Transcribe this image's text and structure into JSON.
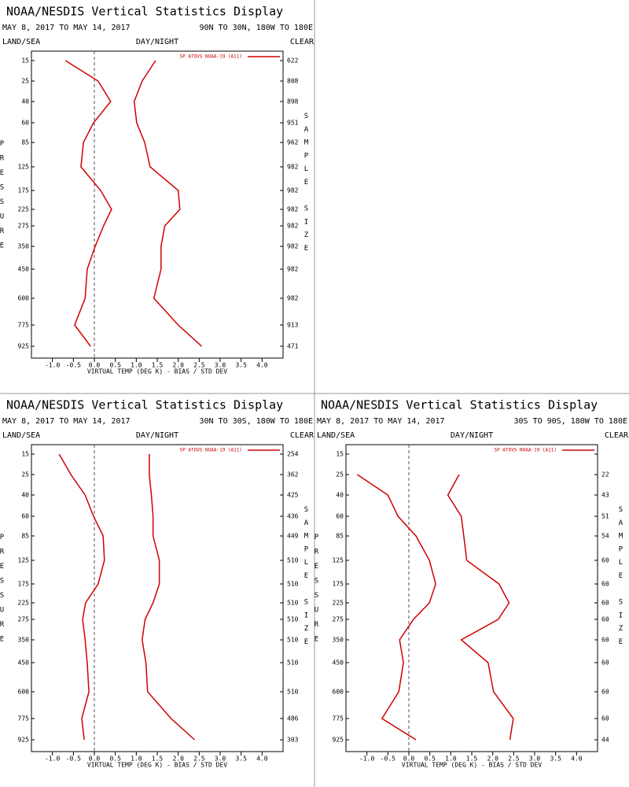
{
  "chart_data": [
    {
      "type": "line",
      "title": "NOAA/NESDIS Vertical Statistics Display",
      "date_range": "MAY 8, 2017 TO MAY 14, 2017",
      "region": "90N TO 30N, 180W TO 180E",
      "surface": "LAND/SEA",
      "time": "DAY/NIGHT",
      "sky": "CLEAR",
      "ylabel": "PRESSURE",
      "y2label": "SAMPLE SIZE",
      "xlabel": "VIRTUAL TEMP (DEG K) - BIAS / STD DEV",
      "categories": [
        15,
        25,
        40,
        60,
        85,
        125,
        175,
        225,
        275,
        350,
        450,
        600,
        775,
        925
      ],
      "sample_size": [
        622,
        808,
        898,
        951,
        962,
        982,
        982,
        982,
        982,
        982,
        982,
        982,
        913,
        471
      ],
      "series": [
        {
          "name": "SP ATOVS NOAA-19 (A11)",
          "color": "#d00000",
          "values": [
            -0.69,
            0.09,
            0.39,
            -0.02,
            -0.26,
            -0.32,
            0.15,
            0.41,
            0.22,
            0.02,
            -0.17,
            -0.22,
            -0.47,
            -0.09
          ],
          "std_dev": [
            1.46,
            1.14,
            0.95,
            1.01,
            1.2,
            1.33,
            2.0,
            2.04,
            1.68,
            1.59,
            1.59,
            1.42,
            2.0,
            2.56
          ]
        }
      ],
      "xlim": [
        -1.5,
        4.5
      ],
      "xticks": [
        {
          "value": -1,
          "label": "-1.0"
        },
        {
          "value": -0.5,
          "label": "-0.5"
        },
        {
          "value": 0,
          "label": "0.0"
        },
        {
          "value": 0.5,
          "label": "0.5"
        },
        {
          "value": 1,
          "label": "1.0"
        },
        {
          "value": 1.5,
          "label": "1.5"
        },
        {
          "value": 2,
          "label": "2.0"
        },
        {
          "value": 2.5,
          "label": "2.5"
        },
        {
          "value": 3,
          "label": "3.0"
        },
        {
          "value": 3.5,
          "label": "3.5"
        },
        {
          "value": 4,
          "label": "4.0"
        }
      ]
    },
    {
      "type": "line",
      "title": "NOAA/NESDIS Vertical Statistics Display",
      "date_range": "MAY 8, 2017 TO MAY 14, 2017",
      "region": "30N TO 30S, 180W TO 180E",
      "surface": "LAND/SEA",
      "time": "DAY/NIGHT",
      "sky": "CLEAR",
      "ylabel": "PRESSURE",
      "y2label": "SAMPLE SIZE",
      "xlabel": "VIRTUAL TEMP (DEG K) - BIAS / STD DEV",
      "categories": [
        15,
        25,
        40,
        60,
        85,
        125,
        175,
        225,
        275,
        350,
        450,
        600,
        775,
        925
      ],
      "sample_size": [
        254,
        362,
        425,
        436,
        449,
        510,
        510,
        510,
        510,
        510,
        510,
        510,
        486,
        303
      ],
      "series": [
        {
          "name": "SP ATOVS NOAA-19 (A11)",
          "color": "#d00000",
          "values": [
            -0.84,
            -0.56,
            -0.22,
            -0.02,
            0.21,
            0.24,
            0.09,
            -0.21,
            -0.28,
            -0.22,
            -0.17,
            -0.13,
            -0.3,
            -0.24
          ],
          "std_dev": [
            1.31,
            1.31,
            1.36,
            1.4,
            1.4,
            1.55,
            1.55,
            1.4,
            1.21,
            1.14,
            1.23,
            1.27,
            1.83,
            2.39
          ]
        }
      ],
      "xlim": [
        -1.5,
        4.5
      ],
      "xticks": [
        {
          "value": -1,
          "label": "-1.0"
        },
        {
          "value": -0.5,
          "label": "-0.5"
        },
        {
          "value": 0,
          "label": "0.0"
        },
        {
          "value": 0.5,
          "label": "0.5"
        },
        {
          "value": 1,
          "label": "1.0"
        },
        {
          "value": 1.5,
          "label": "1.5"
        },
        {
          "value": 2,
          "label": "2.0"
        },
        {
          "value": 2.5,
          "label": "2.5"
        },
        {
          "value": 3,
          "label": "3.0"
        },
        {
          "value": 3.5,
          "label": "3.5"
        },
        {
          "value": 4,
          "label": "4.0"
        }
      ]
    },
    {
      "type": "line",
      "title": "NOAA/NESDIS Vertical Statistics Display",
      "date_range": "MAY 8, 2017 TO MAY 14, 2017",
      "region": "30S TO 90S, 180W TO 180E",
      "surface": "LAND/SEA",
      "time": "DAY/NIGHT",
      "sky": "CLEAR",
      "ylabel": "PRESSURE",
      "y2label": "SAMPLE SIZE",
      "xlabel": "VIRTUAL TEMP (DEG K) - BIAS / STD DEV",
      "categories": [
        15,
        25,
        40,
        60,
        85,
        125,
        175,
        225,
        275,
        350,
        450,
        600,
        775,
        925
      ],
      "sample_size": [
        null,
        22,
        43,
        51,
        54,
        60,
        60,
        60,
        60,
        60,
        60,
        60,
        60,
        44
      ],
      "series": [
        {
          "name": "SP ATOVS NOAA-19 (A11)",
          "color": "#d00000",
          "values": [
            null,
            -1.23,
            -0.5,
            -0.26,
            0.17,
            0.49,
            0.64,
            0.49,
            0.11,
            -0.22,
            -0.13,
            -0.24,
            -0.64,
            0.17
          ],
          "std_dev": [
            null,
            1.2,
            0.93,
            1.25,
            1.31,
            1.38,
            2.15,
            2.39,
            2.13,
            1.25,
            1.89,
            2.02,
            2.49,
            2.41
          ]
        }
      ],
      "xlim": [
        -1.5,
        4.5
      ],
      "xticks": [
        {
          "value": -1,
          "label": "-1.0"
        },
        {
          "value": -0.5,
          "label": "-0.5"
        },
        {
          "value": 0,
          "label": "0.0"
        },
        {
          "value": 0.5,
          "label": "0.5"
        },
        {
          "value": 1,
          "label": "1.0"
        },
        {
          "value": 1.5,
          "label": "1.5"
        },
        {
          "value": 2,
          "label": "2.0"
        },
        {
          "value": 2.5,
          "label": "2.5"
        },
        {
          "value": 3,
          "label": "3.0"
        },
        {
          "value": 3.5,
          "label": "3.5"
        },
        {
          "value": 4,
          "label": "4.0"
        }
      ]
    }
  ]
}
